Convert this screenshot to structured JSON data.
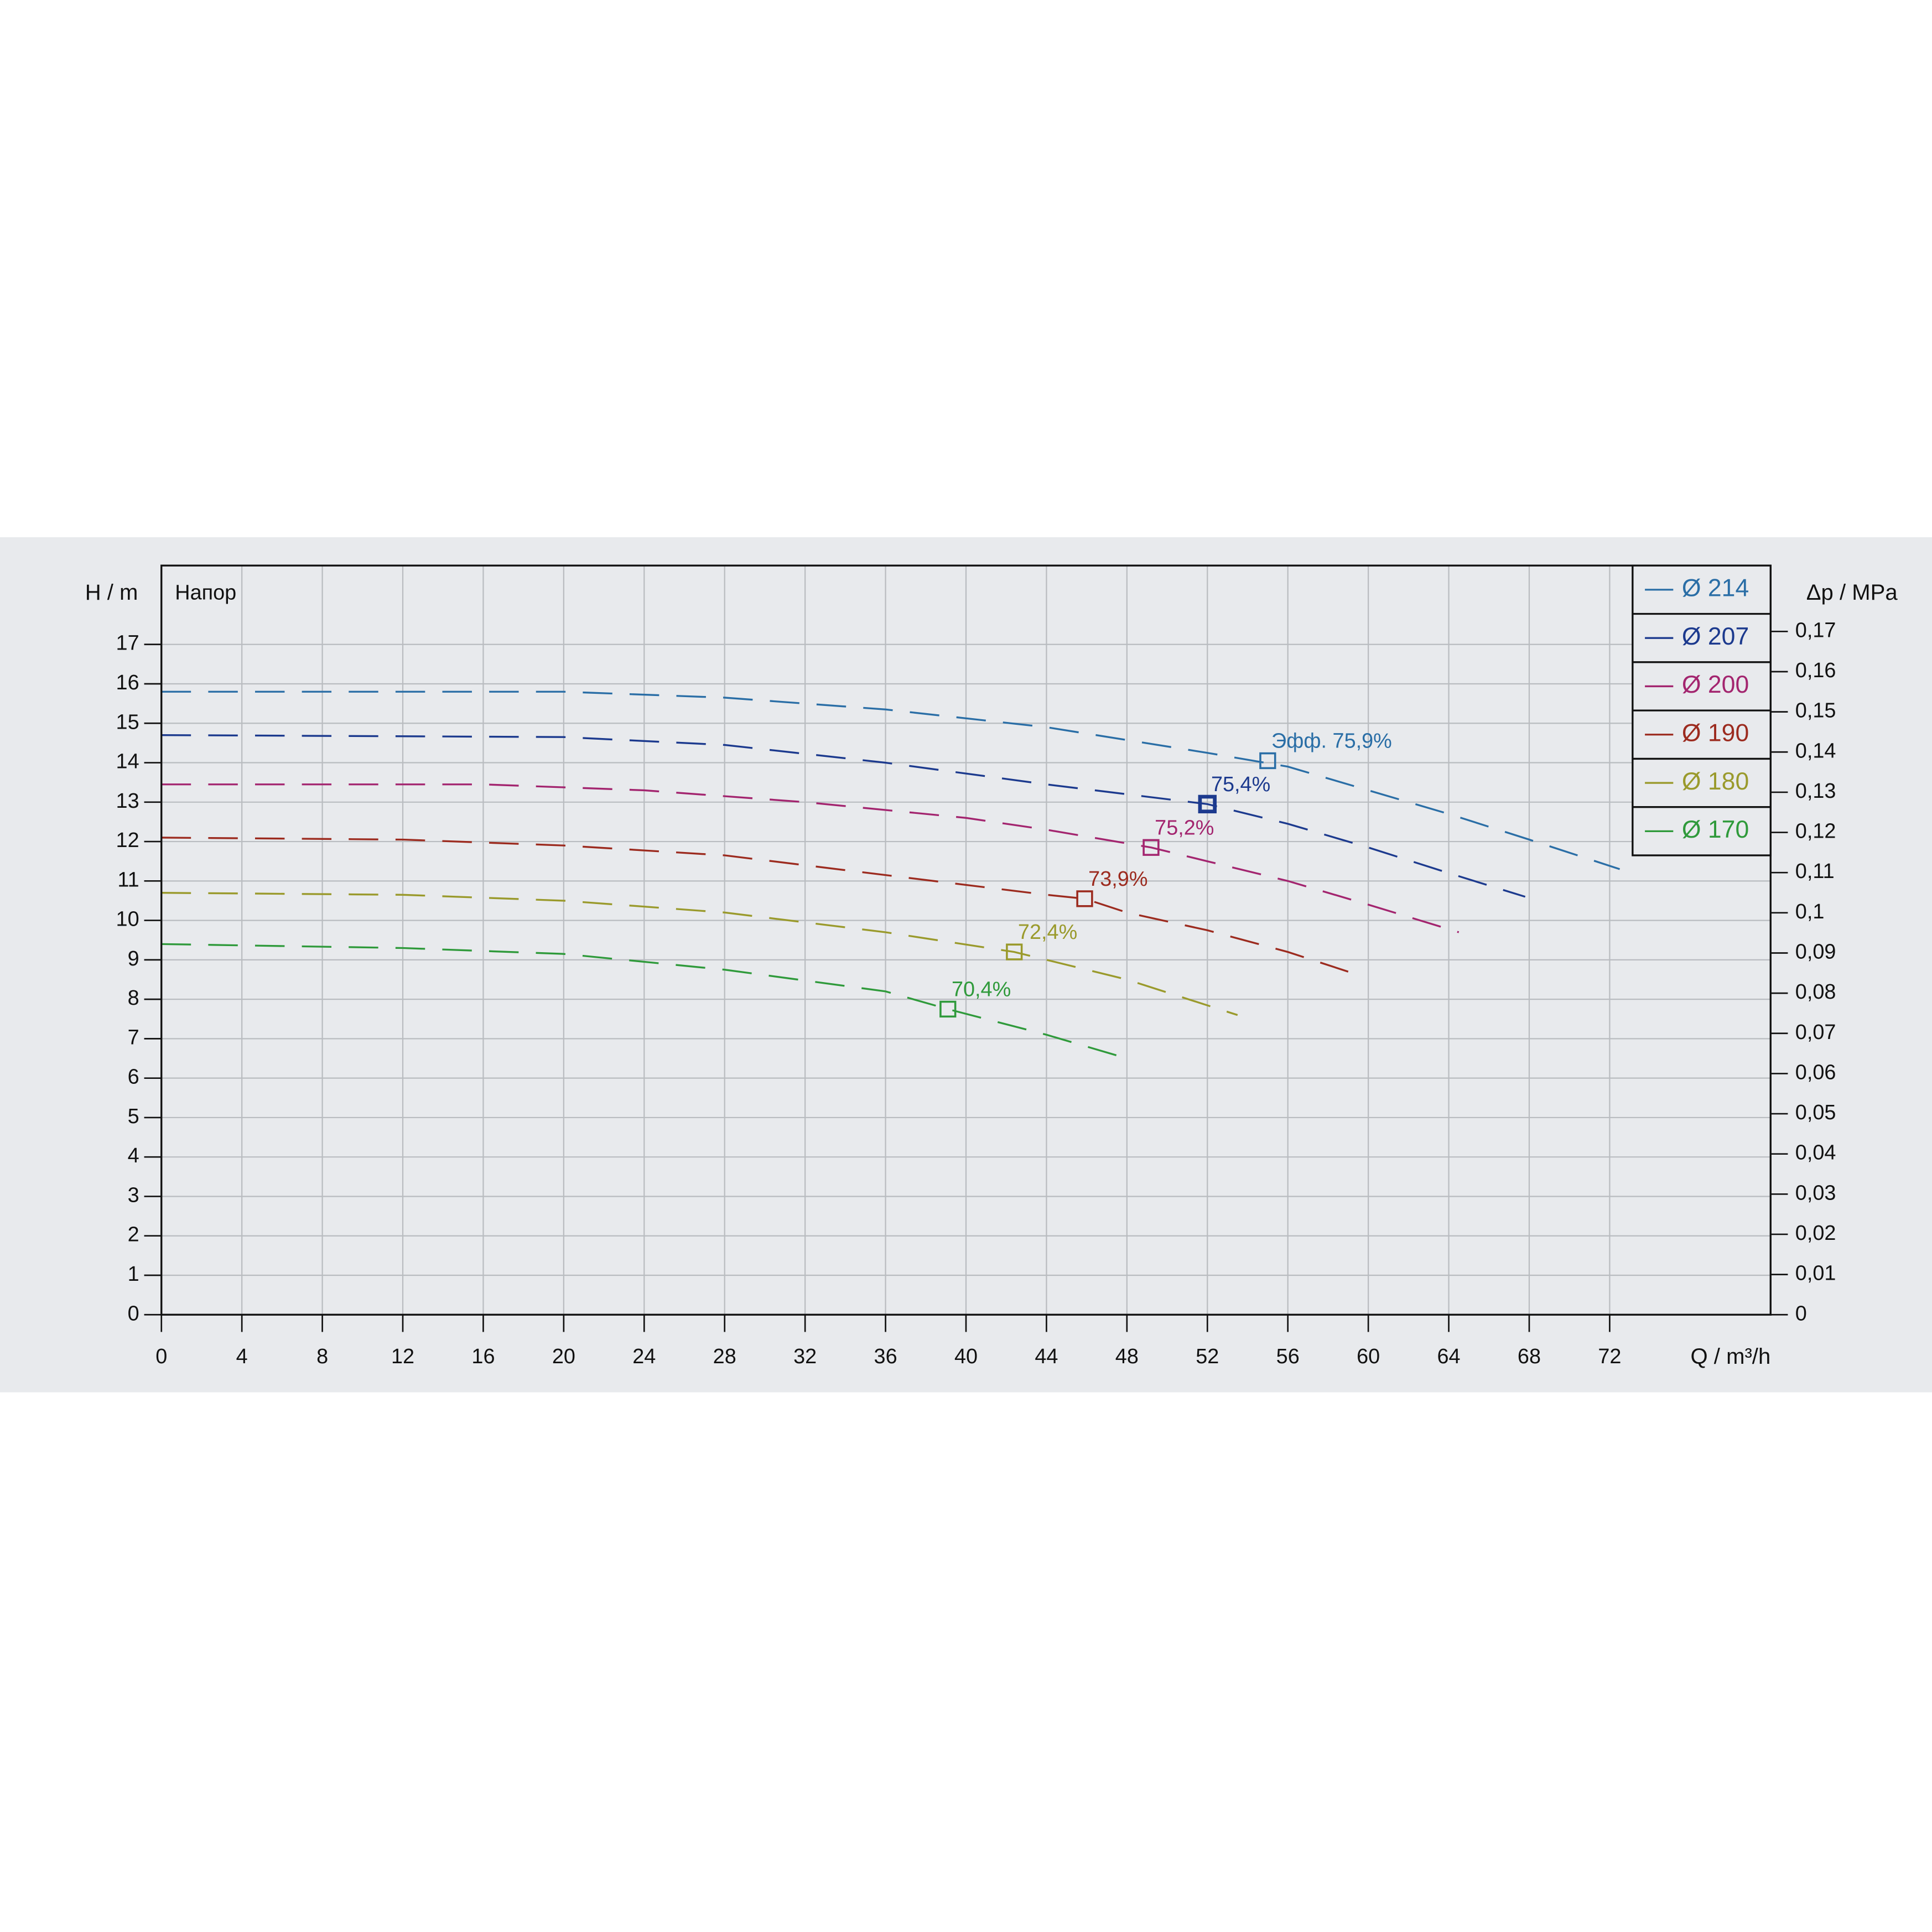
{
  "chart_data": {
    "type": "line",
    "title": "Напор",
    "y_label": "H / m",
    "y2_label": "Δp / MPa",
    "x_label": "Q / m³/h",
    "xlim": [
      0,
      80
    ],
    "ylim": [
      0,
      19
    ],
    "y2lim": [
      0,
      0.1864
    ],
    "xticks": [
      0,
      4,
      8,
      12,
      16,
      20,
      24,
      28,
      32,
      36,
      40,
      44,
      48,
      52,
      56,
      60,
      64,
      68,
      72
    ],
    "yticks": [
      0,
      1,
      2,
      3,
      4,
      5,
      6,
      7,
      8,
      9,
      10,
      11,
      12,
      13,
      14,
      15,
      16,
      17
    ],
    "y2ticks": [
      0,
      {
        "value": 0.01,
        "label": "0,01"
      },
      {
        "value": 0.02,
        "label": "0,02"
      },
      {
        "value": 0.03,
        "label": "0,03"
      },
      {
        "value": 0.04,
        "label": "0,04"
      },
      {
        "value": 0.05,
        "label": "0,05"
      },
      {
        "value": 0.06,
        "label": "0,06"
      },
      {
        "value": 0.07,
        "label": "0,07"
      },
      {
        "value": 0.08,
        "label": "0,08"
      },
      {
        "value": 0.09,
        "label": "0,09"
      },
      {
        "value": 0.1,
        "label": "0,1"
      },
      {
        "value": 0.11,
        "label": "0,11"
      },
      {
        "value": 0.12,
        "label": "0,12"
      },
      {
        "value": 0.13,
        "label": "0,13"
      },
      {
        "value": 0.14,
        "label": "0,14"
      },
      {
        "value": 0.15,
        "label": "0,15"
      },
      {
        "value": 0.16,
        "label": "0,16"
      },
      {
        "value": 0.17,
        "label": "0,17"
      }
    ],
    "grid": true,
    "legend": "upper right",
    "series": [
      {
        "name": "Ø 214",
        "color": "#2a6ea6",
        "x": [
          0,
          20,
          28,
          36,
          44,
          52,
          56,
          60,
          64,
          68,
          72.5
        ],
        "values": [
          15.8,
          15.8,
          15.65,
          15.35,
          14.9,
          14.25,
          13.9,
          13.3,
          12.7,
          12.05,
          11.3
        ],
        "bep": {
          "x": 55,
          "y": 14.05,
          "label": "Эфф.  75,9%"
        }
      },
      {
        "name": "Ø 207",
        "color": "#1c3a8e",
        "x": [
          0,
          20,
          28,
          36,
          44,
          52,
          56,
          60,
          64,
          67.8
        ],
        "values": [
          14.7,
          14.65,
          14.45,
          14.0,
          13.45,
          12.95,
          12.45,
          11.85,
          11.2,
          10.6
        ],
        "bep": {
          "x": 52,
          "y": 12.95,
          "label": "75,4%"
        }
      },
      {
        "name": "Ø 200",
        "color": "#a3256f",
        "x": [
          0,
          16,
          24,
          32,
          40,
          44,
          49.2,
          52,
          56,
          60,
          64.5
        ],
        "values": [
          13.45,
          13.45,
          13.3,
          13.0,
          12.6,
          12.3,
          11.85,
          11.5,
          11.0,
          10.4,
          9.7
        ],
        "bep": {
          "x": 49.2,
          "y": 11.85,
          "label": "75,2%"
        }
      },
      {
        "name": "Ø 190",
        "color": "#9c2b1f",
        "x": [
          0,
          12,
          20,
          28,
          36,
          44,
          45.9,
          48,
          52,
          56,
          59
        ],
        "values": [
          12.1,
          12.05,
          11.9,
          11.65,
          11.15,
          10.65,
          10.55,
          10.2,
          9.75,
          9.2,
          8.7
        ],
        "bep": {
          "x": 45.9,
          "y": 10.55,
          "label": "73,9%"
        }
      },
      {
        "name": "Ø 180",
        "color": "#9a9a2c",
        "x": [
          0,
          12,
          20,
          28,
          36,
          42.4,
          48,
          53.5
        ],
        "values": [
          10.7,
          10.65,
          10.5,
          10.2,
          9.7,
          9.2,
          8.5,
          7.6
        ],
        "bep": {
          "x": 42.4,
          "y": 9.2,
          "label": "72,4%"
        }
      },
      {
        "name": "Ø 170",
        "color": "#2f9a3b",
        "x": [
          0,
          12,
          20,
          28,
          36,
          39.1,
          44,
          48
        ],
        "values": [
          9.4,
          9.3,
          9.15,
          8.75,
          8.2,
          7.75,
          7.1,
          6.5
        ],
        "bep": {
          "x": 39.1,
          "y": 7.75,
          "label": "70,4%"
        }
      }
    ]
  }
}
